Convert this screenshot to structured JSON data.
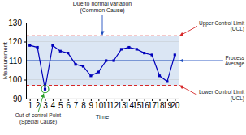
{
  "chart_data": {
    "type": "line",
    "x": [
      1,
      2,
      3,
      4,
      5,
      6,
      7,
      8,
      9,
      10,
      11,
      12,
      13,
      14,
      15,
      16,
      17,
      18,
      19,
      20
    ],
    "values": [
      118,
      117,
      95,
      118,
      115,
      114,
      108,
      107,
      102,
      104,
      110,
      110,
      116,
      117,
      116,
      114,
      113,
      102,
      99,
      113
    ],
    "color": "#0000bb",
    "marker": "square",
    "xlim": [
      0.5,
      20.5
    ],
    "xticks": [
      1,
      2,
      3,
      4,
      5,
      6,
      7,
      8,
      9,
      10,
      11,
      12,
      13,
      14,
      15,
      16,
      17,
      18,
      19,
      20
    ],
    "ylim": [
      90,
      130
    ],
    "yticks": [
      90,
      100,
      110,
      120,
      130
    ],
    "grid": true,
    "xlabel": "Time",
    "ylabel": "Measurement",
    "process_avg": 110,
    "ucl": 123,
    "lcl": 97,
    "out_of_control_index": 2,
    "top_annotation": "Due to normal variation\n(Common Cause)",
    "ucl_label": "Upper Control Limit\n(UCL)",
    "avg_label": "Process\nAverage",
    "lcl_label": "Lower Control Limit\n(UCL)",
    "ooc_label": "Out-of-control Point\n(Special Cause)"
  }
}
